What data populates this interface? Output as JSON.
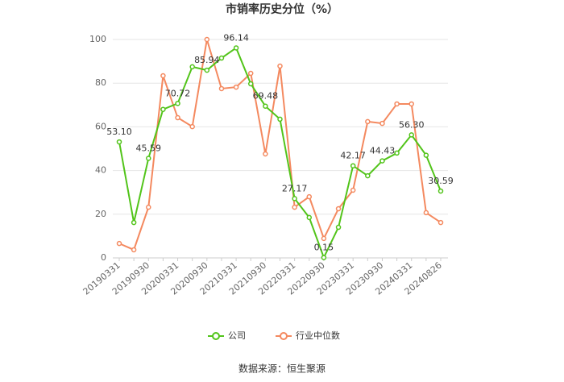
{
  "chart_data": {
    "type": "line",
    "title": "市销率历史分位（%）",
    "categories": [
      "20190331",
      null,
      "20190930",
      null,
      "20200331",
      null,
      "20200930",
      null,
      "20210331",
      null,
      "20210930",
      null,
      "20220331",
      null,
      "20220930",
      null,
      "20230331",
      null,
      "20230930",
      null,
      "20240331",
      null,
      "20240826"
    ],
    "series": [
      {
        "name": "公司",
        "color": "#52c41a",
        "values": [
          53.1,
          16.2,
          45.59,
          68,
          70.72,
          87.5,
          85.94,
          91.5,
          96.14,
          79.7,
          69.48,
          63.5,
          27.17,
          18.5,
          0.15,
          14,
          42.17,
          37.6,
          44.43,
          48,
          56.3,
          47,
          30.59
        ],
        "value_labels": [
          "53.10",
          null,
          "45.59",
          null,
          "70.72",
          null,
          "85.94",
          null,
          "96.14",
          null,
          "69.48",
          null,
          "27.17",
          null,
          "0.15",
          null,
          "42.17",
          null,
          "44.43",
          null,
          "56.30",
          null,
          "30.59"
        ]
      },
      {
        "name": "行业中位数",
        "color": "#f4895f",
        "values": [
          6.6,
          3.7,
          23.2,
          83.4,
          64.2,
          60.1,
          100,
          77.5,
          78.2,
          84.5,
          47.6,
          87.8,
          23.2,
          28,
          8.9,
          22.5,
          31,
          62.4,
          61.6,
          70.5,
          70.5,
          20.7,
          16.2
        ]
      }
    ],
    "ylim": [
      0,
      100
    ],
    "yticks": [
      0,
      20,
      40,
      60,
      80,
      100
    ],
    "grid": true,
    "legend": "bottom",
    "source": "数据来源：恒生聚源"
  }
}
